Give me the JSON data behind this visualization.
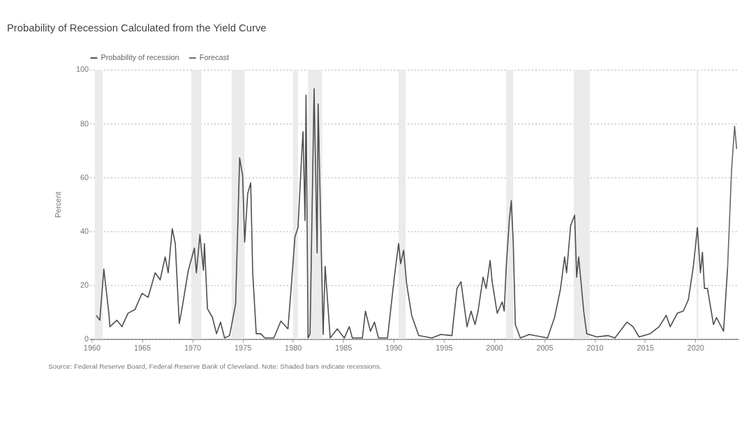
{
  "chart_data": {
    "type": "line",
    "title": "Probability of Recession Calculated from the Yield Curve",
    "ylabel": "Percent",
    "annotations": [
      "Source: Federal Reserve Board, Federal Reserve Bank of Cleveland. Note: Shaded bars indicate recessions."
    ],
    "xlim": [
      1959.8,
      2024.3
    ],
    "xticks": [
      1960,
      1965,
      1970,
      1975,
      1980,
      1985,
      1990,
      1995,
      2000,
      2005,
      2010,
      2015,
      2020
    ],
    "ylim": [
      0,
      100
    ],
    "yticks": [
      0,
      20,
      40,
      60,
      80,
      100
    ],
    "grid": "y",
    "legend": "top left",
    "line_style": "solid",
    "bands": [
      {
        "axis": "x",
        "from": 1960.3,
        "to": 1961.1,
        "color": "#ebebeb"
      },
      {
        "axis": "x",
        "from": 1969.9,
        "to": 1970.9,
        "color": "#ebebeb"
      },
      {
        "axis": "x",
        "from": 1973.9,
        "to": 1975.2,
        "color": "#ebebeb"
      },
      {
        "axis": "x",
        "from": 1980.0,
        "to": 1980.5,
        "color": "#ebebeb"
      },
      {
        "axis": "x",
        "from": 1981.5,
        "to": 1982.9,
        "color": "#ebebeb"
      },
      {
        "axis": "x",
        "from": 1990.5,
        "to": 1991.2,
        "color": "#ebebeb"
      },
      {
        "axis": "x",
        "from": 2001.2,
        "to": 2001.9,
        "color": "#ebebeb"
      },
      {
        "axis": "x",
        "from": 2007.9,
        "to": 2009.5,
        "color": "#ebebeb"
      },
      {
        "axis": "x",
        "from": 2020.1,
        "to": 2020.3,
        "color": "#ebebeb"
      }
    ],
    "series": [
      {
        "name": "Probability of recession",
        "color": "#4d4d4d",
        "x": [
          1960.45,
          1960.8,
          1961.2,
          1961.7,
          1961.8,
          1962.5,
          1963,
          1963.6,
          1964.3,
          1965,
          1965.6,
          1966.3,
          1966.8,
          1967.3,
          1967.6,
          1968,
          1968.3,
          1968.7,
          1969,
          1969.3,
          1969.6,
          1970.2,
          1970.4,
          1970.75,
          1971.1,
          1971.2,
          1971.5,
          1972,
          1972.4,
          1972.8,
          1973.2,
          1973.7,
          1974.3,
          1974.7,
          1975,
          1975.2,
          1975.5,
          1975.8,
          1976,
          1976.35,
          1976.8,
          1977.2,
          1978.1,
          1978.8,
          1979.5,
          1979.8,
          1980.2,
          1980.5,
          1980.9,
          1981.0,
          1981.2,
          1981.3,
          1981.5,
          1981.7,
          1982.1,
          1982.4,
          1982.5,
          1983.0,
          1983.2,
          1983.7,
          1984.4,
          1985.1,
          1985.6,
          1985.9,
          1986.9,
          1987.2,
          1987.7,
          1988.1,
          1988.5,
          1989.4,
          1990.1,
          1990.5,
          1990.7,
          1991.0,
          1991.3,
          1991.8,
          1992.5,
          1993.8,
          1994.7,
          1995.8,
          1996.3,
          1996.7,
          1997.3,
          1997.7,
          1998.1,
          1998.4,
          1998.9,
          1999.2,
          1999.6,
          1999.8,
          2000.3,
          2000.8,
          2001.0,
          2001.2,
          2001.5,
          2001.7,
          2001.9,
          2002.1,
          2002.6,
          2003.5,
          2005.3,
          2006.0,
          2006.6,
          2007.0,
          2007.2,
          2007.6,
          2008.0,
          2008.2,
          2008.4,
          2008.9,
          2009.2,
          2010.2,
          2011.3,
          2012,
          2012.5,
          2013.2,
          2013.8,
          2014.4,
          2015.5,
          2016.4,
          2017.1,
          2017.5,
          2018.2,
          2018.8,
          2019.3,
          2019.8,
          2020.2,
          2020.5,
          2020.7,
          2020.9,
          2021.2,
          2021.8,
          2022.1,
          2022.8,
          2023.2
        ],
        "values": [
          8.8,
          7,
          26,
          9.6,
          4.6,
          7,
          4.6,
          9.6,
          11,
          17,
          15.5,
          24.6,
          22,
          30.5,
          24.6,
          41,
          35.5,
          5.8,
          12,
          18.8,
          25.5,
          33.8,
          24.6,
          38.8,
          25.5,
          35.5,
          11.3,
          8,
          2,
          6.3,
          0.4,
          1.3,
          13,
          67.3,
          60.6,
          36,
          54,
          58,
          24.6,
          2,
          2,
          0.4,
          0.4,
          6.7,
          3.8,
          18,
          38,
          41.4,
          70.6,
          77,
          44,
          90.6,
          0.4,
          2,
          93,
          32,
          87.3,
          1.7,
          27,
          0.4,
          3.8,
          0.4,
          4.6,
          0.4,
          0.4,
          10.4,
          2.9,
          6.3,
          0.4,
          0.4,
          23.8,
          35.5,
          28,
          33,
          20.5,
          8.8,
          1.3,
          0.4,
          1.7,
          1.3,
          18.8,
          21.3,
          4.6,
          10.4,
          5.4,
          10.4,
          23,
          18.8,
          29.2,
          21.3,
          9.6,
          13.8,
          10.4,
          27,
          43.9,
          51.4,
          35.5,
          5.4,
          0.4,
          1.7,
          0.4,
          8,
          18.8,
          30.5,
          24.6,
          42.2,
          46,
          23,
          30.5,
          10.4,
          2,
          0.8,
          1.3,
          0.4,
          2.9,
          6.3,
          4.6,
          0.8,
          2,
          4.6,
          8.8,
          4.6,
          9.6,
          10.4,
          14.6,
          27,
          41.4,
          24.6,
          32.2,
          18.8,
          18.8,
          5.4,
          8,
          2.9,
          26.3
        ]
      },
      {
        "name": "Forecast",
        "color": "#666666",
        "x": [
          2023.2,
          2023.6,
          2023.9,
          2024.1
        ],
        "values": [
          26.3,
          63,
          79,
          70.6
        ]
      }
    ]
  }
}
